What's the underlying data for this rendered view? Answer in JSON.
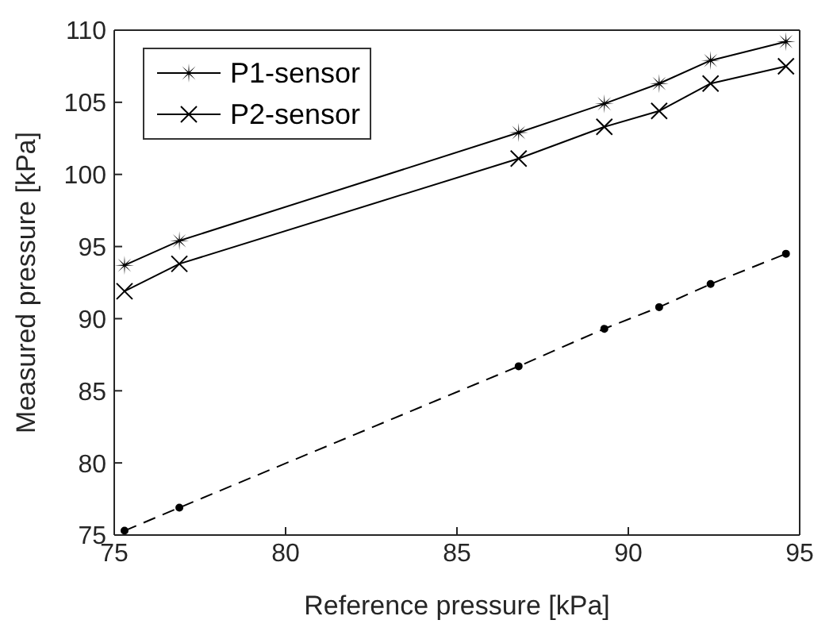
{
  "chart_data": {
    "type": "line",
    "xlabel": "Reference pressure [kPa]",
    "ylabel": "Measured pressure [kPa]",
    "x": [
      75.3,
      76.9,
      86.8,
      89.3,
      90.9,
      92.4,
      94.6
    ],
    "series": [
      {
        "color": "#000000",
        "marker": "circle",
        "line_style": "dashed",
        "values": [
          75.3,
          76.9,
          86.7,
          89.3,
          90.8,
          92.4,
          94.5
        ]
      },
      {
        "name": "P1-sensor",
        "color": "#000000",
        "marker": "star",
        "line_style": "solid",
        "values": [
          93.7,
          95.4,
          102.9,
          104.9,
          106.3,
          107.9,
          109.2
        ]
      },
      {
        "name": "P2-sensor",
        "color": "#000000",
        "marker": "cross",
        "line_style": "solid",
        "values": [
          91.9,
          93.8,
          101.1,
          103.3,
          104.4,
          106.3,
          107.5
        ]
      }
    ],
    "xlim": [
      75,
      95
    ],
    "xticks": [
      75,
      80,
      85,
      90,
      95
    ],
    "ylim": [
      75,
      110
    ],
    "yticks": [
      75,
      80,
      85,
      90,
      95,
      100,
      105,
      110
    ],
    "grid": false,
    "legend": "top left"
  }
}
